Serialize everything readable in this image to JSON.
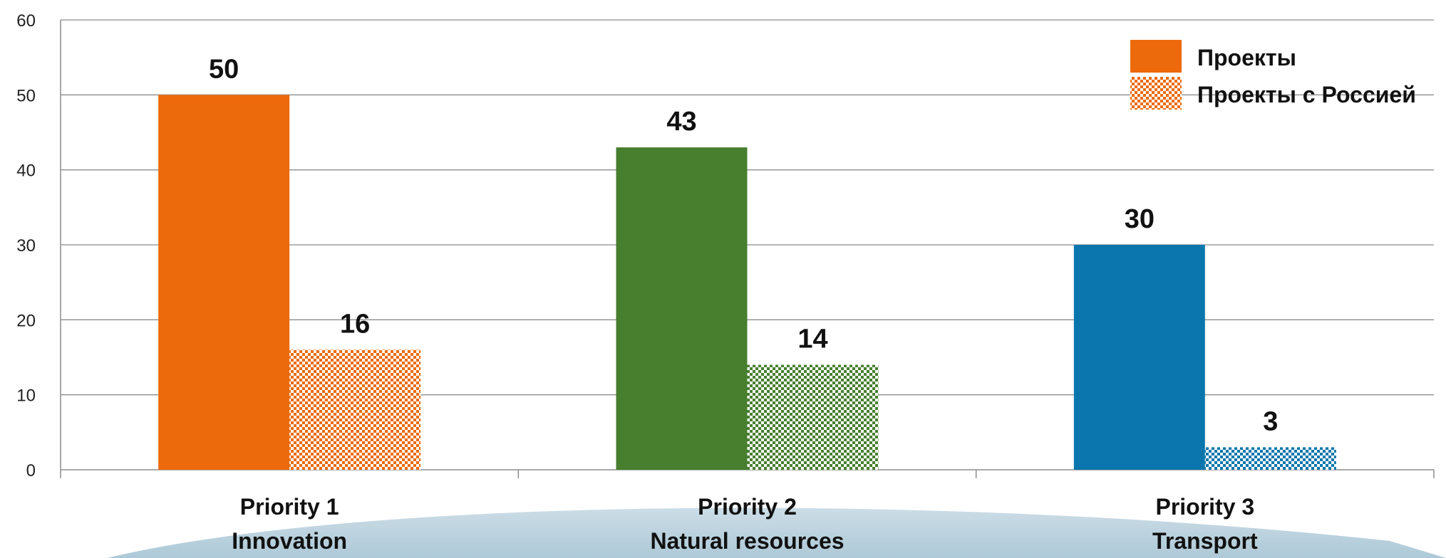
{
  "chart_data": {
    "type": "bar",
    "categories": [
      [
        "Priority 1",
        "Innovation"
      ],
      [
        "Priority 2",
        "Natural resources"
      ],
      [
        "Priority 3",
        "Transport"
      ]
    ],
    "series": [
      {
        "name": "Проекты",
        "values": [
          50,
          43,
          30
        ],
        "style": "solid"
      },
      {
        "name": "Проекты с Россией",
        "values": [
          16,
          14,
          3
        ],
        "style": "checkered"
      }
    ],
    "category_colors": [
      "#ec6a0b",
      "#477f2f",
      "#0a76ad"
    ],
    "legend_color": "#ec6a0b",
    "ylim": [
      0,
      60
    ],
    "yticks": [
      0,
      10,
      20,
      30,
      40,
      50,
      60
    ],
    "grid": true,
    "legend_position": "top-right",
    "title": "",
    "xlabel": "",
    "ylabel": ""
  }
}
